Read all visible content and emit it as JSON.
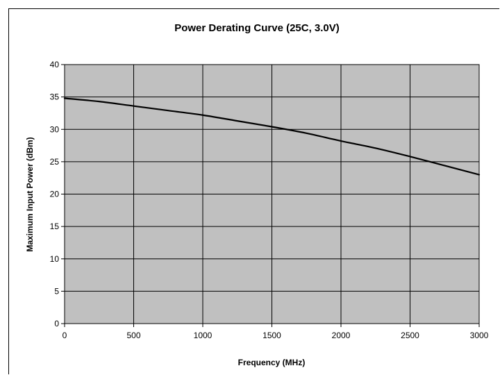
{
  "chart_data": {
    "type": "line",
    "title": "Power Derating Curve (25C, 3.0V)",
    "xlabel": "Frequency (MHz)",
    "ylabel": "Maximum Input Power (dBm)",
    "xlim": [
      0,
      3000
    ],
    "ylim": [
      0,
      40
    ],
    "xticks": [
      0,
      500,
      1000,
      1500,
      2000,
      2500,
      3000
    ],
    "yticks": [
      0,
      5,
      10,
      15,
      20,
      25,
      30,
      35,
      40
    ],
    "grid": true,
    "legend": "none",
    "plot_background": "#c0c0c0",
    "line_color": "#000000",
    "series": [
      {
        "x": [
          0,
          250,
          500,
          750,
          1000,
          1250,
          1500,
          1750,
          2000,
          2250,
          2500,
          2750,
          3000
        ],
        "y": [
          34.8,
          34.3,
          33.6,
          32.9,
          32.2,
          31.3,
          30.4,
          29.4,
          28.2,
          27.1,
          25.8,
          24.4,
          23.0
        ]
      }
    ]
  }
}
